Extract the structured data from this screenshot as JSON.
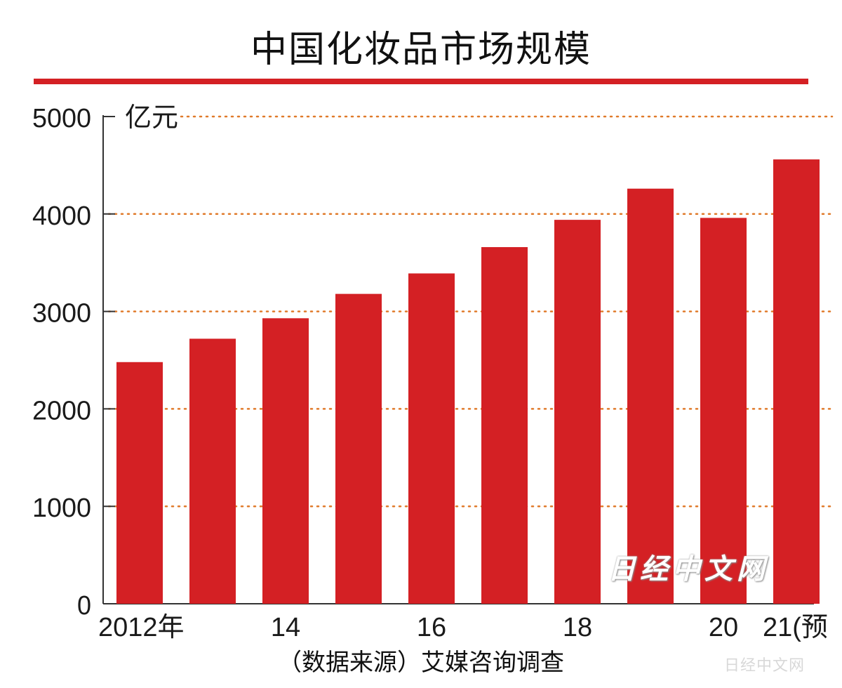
{
  "chart_data": {
    "type": "bar",
    "title": "中国化妆品市场规模",
    "unit_label": "亿元",
    "categories": [
      "2012",
      "2013",
      "2014",
      "2015",
      "2016",
      "2017",
      "2018",
      "2019",
      "2020",
      "2021"
    ],
    "values": [
      2480,
      2720,
      2930,
      3180,
      3390,
      3660,
      3940,
      4260,
      3960,
      4560
    ],
    "x_tick_labels": [
      {
        "index": 0,
        "label": "2012年"
      },
      {
        "index": 2,
        "label": "14"
      },
      {
        "index": 4,
        "label": "16"
      },
      {
        "index": 6,
        "label": "18"
      },
      {
        "index": 8,
        "label": "20"
      },
      {
        "index": 9,
        "label": "21(预"
      }
    ],
    "y_ticks": [
      "0",
      "1000",
      "2000",
      "3000",
      "4000",
      "5000"
    ],
    "ylim": [
      0,
      5000
    ],
    "grid": "dotted horizontal",
    "bar_color": "#d42024",
    "grid_color": "#e07a2a",
    "source_note": "（数据来源）艾媒咨询调查"
  },
  "watermark": "日经中文网",
  "corner_mark": "日经中文网"
}
